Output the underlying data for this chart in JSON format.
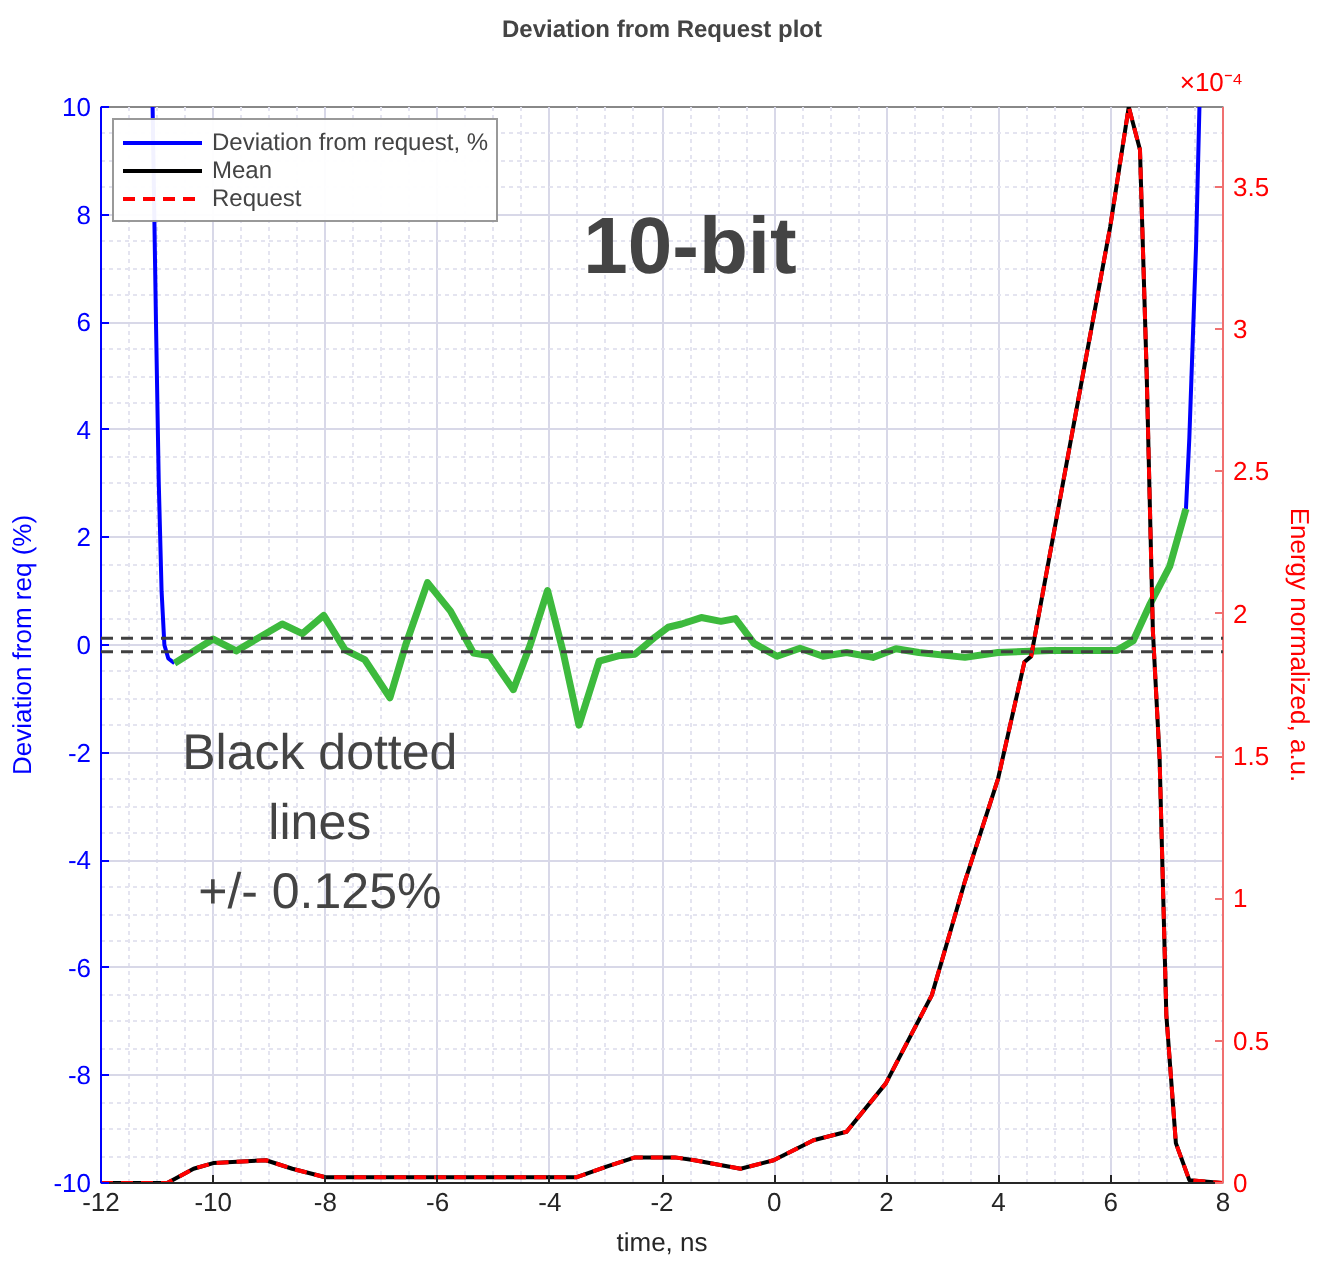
{
  "chart_data": {
    "type": "line",
    "title": "Deviation from Request plot",
    "xlabel": "time, ns",
    "ylabel": "Deviation from req (%)",
    "y2label": "Energy normalized, a.u.",
    "xlim": [
      -12,
      8
    ],
    "xticks": [
      -12,
      -10,
      -8,
      -6,
      -4,
      -2,
      0,
      2,
      4,
      6,
      8
    ],
    "ylim": [
      -10,
      10
    ],
    "yticks": [
      -10,
      -8,
      -6,
      -4,
      -2,
      0,
      2,
      4,
      6,
      8,
      10
    ],
    "y2lim": [
      0,
      3.78
    ],
    "y2ticks": [
      0,
      0.5,
      1,
      1.5,
      2,
      2.5,
      3,
      3.5
    ],
    "grid": true,
    "legend": "top left",
    "line_style": "solid",
    "series": [
      {
        "name": "Deviation from request, %",
        "color": "#0000ff",
        "x": [
          -11.08,
          -11.02,
          -10.97,
          -10.92,
          -10.87,
          -10.8,
          -10.69,
          6.95,
          7.05,
          7.34,
          7.4,
          7.52,
          7.58
        ],
        "values": [
          10,
          6,
          3,
          1,
          0,
          -0.25,
          -0.34,
          null,
          null,
          2.53,
          3.85,
          7.42,
          10
        ]
      },
      {
        "color": "#3dba3d",
        "x": [
          -10.69,
          -10.0,
          -9.59,
          -8.77,
          -8.41,
          -8.03,
          -7.65,
          -7.3,
          -6.85,
          -6.57,
          -6.18,
          -5.77,
          -5.36,
          -5.07,
          -4.65,
          -4.35,
          -4.04,
          -3.77,
          -3.48,
          -3.12,
          -2.78,
          -2.48,
          -2.12,
          -1.89,
          -1.65,
          -1.3,
          -0.95,
          -0.69,
          -0.36,
          0.05,
          0.46,
          0.87,
          1.29,
          1.76,
          2.17,
          2.58,
          3.4,
          3.99,
          4.93,
          6.11,
          6.4,
          6.69,
          7.05,
          7.34
        ],
        "values": [
          -0.34,
          0.11,
          -0.11,
          0.39,
          0.21,
          0.55,
          -0.09,
          -0.27,
          -0.98,
          0,
          1.16,
          0.63,
          -0.15,
          -0.2,
          -0.83,
          0,
          1.01,
          -0.1,
          -1.49,
          -0.3,
          -0.2,
          -0.17,
          0.15,
          0.33,
          0.39,
          0.51,
          0.44,
          0.49,
          0.03,
          -0.21,
          -0.06,
          -0.21,
          -0.14,
          -0.23,
          -0.07,
          -0.14,
          -0.23,
          -0.14,
          -0.1,
          -0.1,
          0.08,
          0.74,
          1.46,
          2.53
        ]
      },
      {
        "name": "Mean",
        "color": "#000000",
        "axis": "y2",
        "x": [
          -12,
          -10.82,
          -10.35,
          -10.0,
          -9.06,
          -8.59,
          -8.0,
          -3.53,
          -2.95,
          -2.48,
          -1.77,
          -1.42,
          -0.6,
          -0.01,
          0.7,
          1.29,
          1.99,
          2.81,
          3.4,
          3.99,
          4.46,
          4.58,
          5.4,
          5.99,
          6.32,
          6.52,
          6.64,
          6.75,
          6.87,
          6.99,
          7.16,
          7.4,
          7.99
        ],
        "values": [
          0,
          0,
          0.05,
          0.07,
          0.08,
          0.05,
          0.02,
          0.02,
          0.06,
          0.09,
          0.09,
          0.08,
          0.05,
          0.08,
          0.15,
          0.18,
          0.35,
          0.66,
          1.06,
          1.42,
          1.83,
          1.85,
          2.73,
          3.36,
          3.78,
          3.63,
          2.84,
          1.94,
          1.49,
          0.59,
          0.14,
          0.01,
          0
        ]
      },
      {
        "name": "Request",
        "color": "#ff0000",
        "axis": "y2",
        "line_style": "dashed",
        "x": [
          -12,
          -10.82,
          -10.35,
          -10.0,
          -9.06,
          -8.59,
          -8.0,
          -3.53,
          -2.95,
          -2.48,
          -1.77,
          -1.42,
          -0.6,
          -0.01,
          0.7,
          1.29,
          1.99,
          2.81,
          3.4,
          3.99,
          4.46,
          4.58,
          5.4,
          5.99,
          6.32,
          6.52,
          6.64,
          6.75,
          6.87,
          6.99,
          7.16,
          7.4,
          7.99
        ],
        "values": [
          0,
          0,
          0.05,
          0.07,
          0.08,
          0.05,
          0.02,
          0.02,
          0.06,
          0.09,
          0.09,
          0.08,
          0.05,
          0.08,
          0.15,
          0.18,
          0.35,
          0.66,
          1.06,
          1.42,
          1.83,
          1.85,
          2.73,
          3.36,
          3.78,
          3.63,
          2.84,
          1.94,
          1.49,
          0.59,
          0.14,
          0.01,
          0
        ]
      }
    ],
    "ref_lines": [
      {
        "axis": "y",
        "value": 0.125,
        "color": "#404040",
        "line_style": "dashed"
      },
      {
        "axis": "y",
        "value": -0.125,
        "color": "#404040",
        "line_style": "dashed"
      }
    ],
    "annotations": [
      "10-bit",
      "Black dotted lines +/- 0.125%",
      "×10⁻⁴"
    ]
  }
}
